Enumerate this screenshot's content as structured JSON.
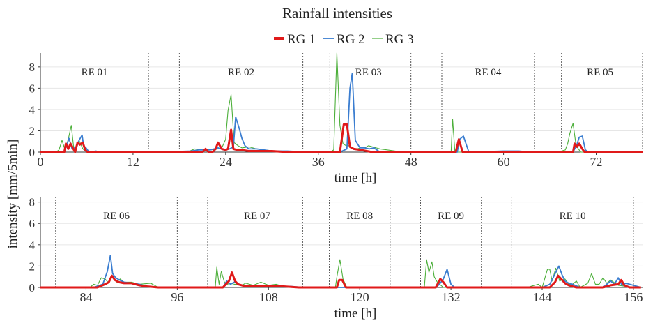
{
  "title": "Rainfall intensities",
  "ylabel": "intensity [mm/5min]",
  "legend": [
    {
      "name": "RG 1",
      "color": "#e01a1a"
    },
    {
      "name": "RG 2",
      "color": "#3a7dd0"
    },
    {
      "name": "RG 3",
      "color": "#4caf3a"
    }
  ],
  "chart_data": [
    {
      "type": "line",
      "panel": "top",
      "xlabel": "time [h]",
      "xlim": [
        0,
        78
      ],
      "ylim": [
        0,
        9.3
      ],
      "xticks": [
        0,
        12,
        24,
        36,
        48,
        60,
        72
      ],
      "yticks": [
        0,
        2,
        4,
        6,
        8
      ],
      "grid": true,
      "event_separators": [
        14,
        18,
        34,
        37.5,
        48,
        52,
        64,
        67.5,
        78
      ],
      "events": [
        {
          "label": "RE 01",
          "x": 7
        },
        {
          "label": "RE 02",
          "x": 26
        },
        {
          "label": "RE 03",
          "x": 42.5
        },
        {
          "label": "RE 04",
          "x": 58
        },
        {
          "label": "RE 05",
          "x": 72.5
        }
      ],
      "series": [
        {
          "name": "RG 1",
          "color": "#e01a1a",
          "x": [
            0,
            3.1,
            3.3,
            3.6,
            3.9,
            4.5,
            4.8,
            5.1,
            5.5,
            5.8,
            6.1,
            15.7,
            16.0,
            21.0,
            21.4,
            21.8,
            22.0,
            22.3,
            22.7,
            23.0,
            23.5,
            24.0,
            24.3,
            24.7,
            25.0,
            25.5,
            26.0,
            27.0,
            30.0,
            32.0,
            34.5,
            38.8,
            39.3,
            39.7,
            40.1,
            40.6,
            41.5,
            43.0,
            52.0,
            53.8,
            54.2,
            54.7,
            56.0,
            63.7,
            64.0,
            69.0,
            69.2,
            69.5,
            69.8,
            70.2,
            70.5,
            78.0
          ],
          "y": [
            0,
            0,
            0.8,
            0.3,
            0.8,
            0,
            0.9,
            0.7,
            0.9,
            0.2,
            0,
            0,
            0,
            0,
            0.3,
            0,
            0,
            0,
            0.3,
            0.9,
            0.3,
            0.2,
            0.3,
            2.1,
            0.3,
            0.2,
            0.2,
            0.1,
            0.1,
            0,
            0,
            0,
            2.6,
            2.6,
            0.5,
            0.3,
            0.2,
            0,
            0,
            0,
            1.2,
            0,
            0,
            0,
            0,
            0,
            0.8,
            0.5,
            0.8,
            0.3,
            0,
            0
          ]
        },
        {
          "name": "RG 2",
          "color": "#3a7dd0",
          "x": [
            0,
            3.0,
            3.4,
            3.7,
            4.1,
            4.7,
            5.0,
            5.4,
            5.6,
            5.9,
            6.3,
            7.2,
            7.5,
            15.0,
            19.5,
            20.5,
            22.0,
            23.0,
            23.8,
            24.5,
            25.0,
            25.3,
            25.8,
            26.1,
            26.5,
            27.0,
            28.0,
            30.0,
            32.0,
            34.8,
            38.8,
            39.7,
            40.1,
            40.4,
            40.8,
            41.4,
            42.0,
            42.6,
            43.2,
            44.0,
            54.0,
            54.3,
            54.8,
            55.5,
            60.0,
            62.0,
            63.5,
            69.0,
            69.5,
            69.8,
            70.2,
            70.6,
            71.0,
            78.0
          ],
          "y": [
            0,
            0,
            0.6,
            1.3,
            0.3,
            0.5,
            1.1,
            1.6,
            0.6,
            0.4,
            0,
            0.1,
            0,
            0,
            0.1,
            0.2,
            0.2,
            0.4,
            0.2,
            0.3,
            0.5,
            3.3,
            2.1,
            1.3,
            0.6,
            0.3,
            0.3,
            0.1,
            0.1,
            0,
            0,
            0.3,
            6.0,
            7.4,
            1.1,
            0.4,
            0.4,
            0.3,
            0.4,
            0,
            0,
            1.2,
            1.5,
            0,
            0.1,
            0.1,
            0,
            0,
            0.7,
            1.4,
            1.5,
            0.2,
            0,
            0
          ]
        },
        {
          "name": "RG 3",
          "color": "#4caf3a",
          "x": [
            0,
            2.0,
            2.4,
            2.8,
            3.2,
            3.6,
            4.0,
            4.3,
            4.7,
            5.0,
            5.5,
            6.0,
            15.0,
            19.0,
            20.0,
            21.0,
            22.0,
            23.0,
            23.5,
            24.0,
            24.3,
            24.7,
            25.1,
            25.6,
            26.1,
            27.0,
            28.0,
            29.0,
            30.5,
            32.0,
            36.0,
            37.5,
            38.0,
            38.4,
            38.8,
            39.2,
            39.6,
            40.0,
            40.4,
            41.0,
            41.5,
            42.0,
            42.5,
            43.5,
            44.0,
            47.0,
            53.2,
            53.4,
            53.7,
            54.0,
            67.0,
            68.0,
            68.3,
            68.6,
            69.0,
            69.4,
            70.0,
            78.0
          ],
          "y": [
            0,
            0,
            0.2,
            1.1,
            0.2,
            1.2,
            2.5,
            0.5,
            0.5,
            1.1,
            0.3,
            0,
            0,
            0,
            0.3,
            0.2,
            0.2,
            0.3,
            0.4,
            1.2,
            3.9,
            5.4,
            0.9,
            0.6,
            0.4,
            0.5,
            0.3,
            0.2,
            0.1,
            0,
            0,
            0,
            0.2,
            9.3,
            2.5,
            0.8,
            0.6,
            0.6,
            0.4,
            0.3,
            0.4,
            0.4,
            0.6,
            0.4,
            0.3,
            0,
            0,
            3.1,
            0,
            0,
            0,
            0.2,
            0.8,
            1.8,
            2.7,
            0.6,
            0,
            0
          ]
        }
      ]
    },
    {
      "type": "line",
      "panel": "bottom",
      "xlabel": "time [h]",
      "xlim": [
        78,
        157.2
      ],
      "ylim": [
        0,
        8.5
      ],
      "xticks": [
        84,
        96,
        108,
        120,
        132,
        144,
        156
      ],
      "yticks": [
        0,
        2,
        4,
        6,
        8
      ],
      "grid": true,
      "event_separators": [
        80,
        96,
        100,
        112.5,
        116,
        124,
        128,
        136,
        140,
        156
      ],
      "events": [
        {
          "label": "RE 06",
          "x": 88
        },
        {
          "label": "RE 07",
          "x": 106.5
        },
        {
          "label": "RE 08",
          "x": 120
        },
        {
          "label": "RE 09",
          "x": 132
        },
        {
          "label": "RE 10",
          "x": 148
        }
      ],
      "series": [
        {
          "name": "RG 1",
          "color": "#e01a1a",
          "x": [
            78,
            85.5,
            86.5,
            87.0,
            87.4,
            87.8,
            88.3,
            89.0,
            90.0,
            91.0,
            92.0,
            93.5,
            102.0,
            102.8,
            103.2,
            103.6,
            104.0,
            105.0,
            107.0,
            110.0,
            112.0,
            117.0,
            117.3,
            117.7,
            118.2,
            130.0,
            130.6,
            131.0,
            131.5,
            145.0,
            145.7,
            146.1,
            146.5,
            147.0,
            147.5,
            148.5,
            152.0,
            153.0,
            154.0,
            154.4,
            154.8,
            155.5,
            157
          ],
          "y": [
            0,
            0,
            0.3,
            0.5,
            1.1,
            0.7,
            0.5,
            0.4,
            0.4,
            0.2,
            0.1,
            0,
            0,
            0.6,
            1.4,
            0.6,
            0.3,
            0.1,
            0.1,
            0.1,
            0,
            0,
            0.7,
            0.7,
            0,
            0,
            0.8,
            0.5,
            0,
            0,
            0.5,
            1.1,
            0.8,
            0.4,
            0.2,
            0,
            0,
            0.2,
            0.3,
            0.7,
            0.2,
            0,
            0
          ]
        },
        {
          "name": "RG 2",
          "color": "#3a7dd0",
          "x": [
            78,
            85.0,
            86.2,
            86.8,
            87.2,
            87.5,
            87.9,
            88.4,
            89.0,
            90.0,
            91.0,
            92.0,
            93.5,
            102.0,
            102.5,
            103.0,
            103.5,
            104.5,
            106.0,
            108.0,
            111.0,
            112.5,
            130.0,
            130.5,
            131.0,
            131.5,
            132.0,
            132.5,
            144.0,
            145.0,
            145.5,
            146.2,
            146.6,
            147.0,
            147.5,
            148.0,
            149.0,
            152.0,
            153.0,
            153.5,
            154.0,
            154.5,
            155.0,
            157
          ],
          "y": [
            0,
            0,
            0.3,
            1.5,
            3.0,
            1.3,
            0.9,
            0.7,
            0.5,
            0.4,
            0.3,
            0.1,
            0,
            0,
            0.6,
            0.3,
            0.5,
            0.2,
            0.1,
            0.1,
            0.1,
            0,
            0,
            0.3,
            0.8,
            1.7,
            0.3,
            0,
            0,
            0.3,
            1.0,
            2.0,
            1.2,
            0.6,
            0.4,
            0.3,
            0,
            0,
            0.6,
            0.3,
            0.9,
            0.2,
            0.4,
            0
          ]
        },
        {
          "name": "RG 3",
          "color": "#4caf3a",
          "x": [
            78,
            84.5,
            85.0,
            85.5,
            86.0,
            86.5,
            87.0,
            87.5,
            88.0,
            88.5,
            89.0,
            90.0,
            91.0,
            92.5,
            93.5,
            101.0,
            101.2,
            101.5,
            101.8,
            102.2,
            102.6,
            103.0,
            103.5,
            104.0,
            104.5,
            105.0,
            106.0,
            107.0,
            108.0,
            109.0,
            110.0,
            112.0,
            116.8,
            117.0,
            117.4,
            117.8,
            118.3,
            128.5,
            128.8,
            129.1,
            129.5,
            129.8,
            130.2,
            131.0,
            142.0,
            143.5,
            144.0,
            144.7,
            145.0,
            145.3,
            145.8,
            146.3,
            147.0,
            147.5,
            148.0,
            148.5,
            149.0,
            150.0,
            150.5,
            151.0,
            151.5,
            152.0,
            152.5,
            153.0,
            154.0,
            155.0,
            157
          ],
          "y": [
            0,
            0,
            0.3,
            0.2,
            0.9,
            0.8,
            0.4,
            1.1,
            0.5,
            0.8,
            0.5,
            0.5,
            0.3,
            0.4,
            0,
            0,
            1.9,
            0.3,
            1.5,
            0.5,
            0.3,
            0.4,
            0.3,
            0.3,
            0.2,
            0.4,
            0.2,
            0.5,
            0.2,
            0.3,
            0.1,
            0,
            0,
            1.0,
            2.6,
            0.8,
            0,
            0,
            2.6,
            1.4,
            2.4,
            1.0,
            0.5,
            0,
            0,
            0.3,
            0,
            1.7,
            1.7,
            0.6,
            1.8,
            0.6,
            0.8,
            0.3,
            0.3,
            0.6,
            0,
            0.4,
            1.3,
            0.3,
            0.3,
            0.9,
            0.4,
            0.7,
            0.2,
            0.1,
            0
          ]
        }
      ]
    }
  ]
}
